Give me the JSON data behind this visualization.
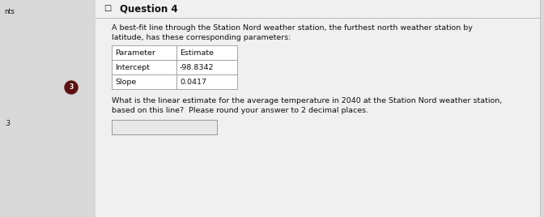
{
  "title": "Question 4",
  "left_label": "nts",
  "left_number": ".3",
  "checkbox_char": "□",
  "body_text_1": "A best-fit line through the Station Nord weather station, the furthest north weather station by",
  "body_text_2": "latitude, has these corresponding parameters:",
  "table_headers": [
    "Parameter",
    "Estimate"
  ],
  "table_rows": [
    [
      "Intercept",
      "-98.8342"
    ],
    [
      "Slope",
      "0.0417"
    ]
  ],
  "question_text_1": "What is the linear estimate for the average temperature in 2040 at the Station Nord weather station,",
  "question_text_2": "based on this line?  Please round your answer to 2 decimal places.",
  "bg_color": "#d8d8d8",
  "card_color": "#f0f0f0",
  "title_line_color": "#bbbbbb",
  "table_border_color": "#999999",
  "answer_box_color": "#e8e8e8",
  "text_color": "#111111",
  "left_circle_color": "#5c1010",
  "title_fontsize": 8.5,
  "body_fontsize": 6.8,
  "table_fontsize": 6.8,
  "small_fontsize": 6.0
}
